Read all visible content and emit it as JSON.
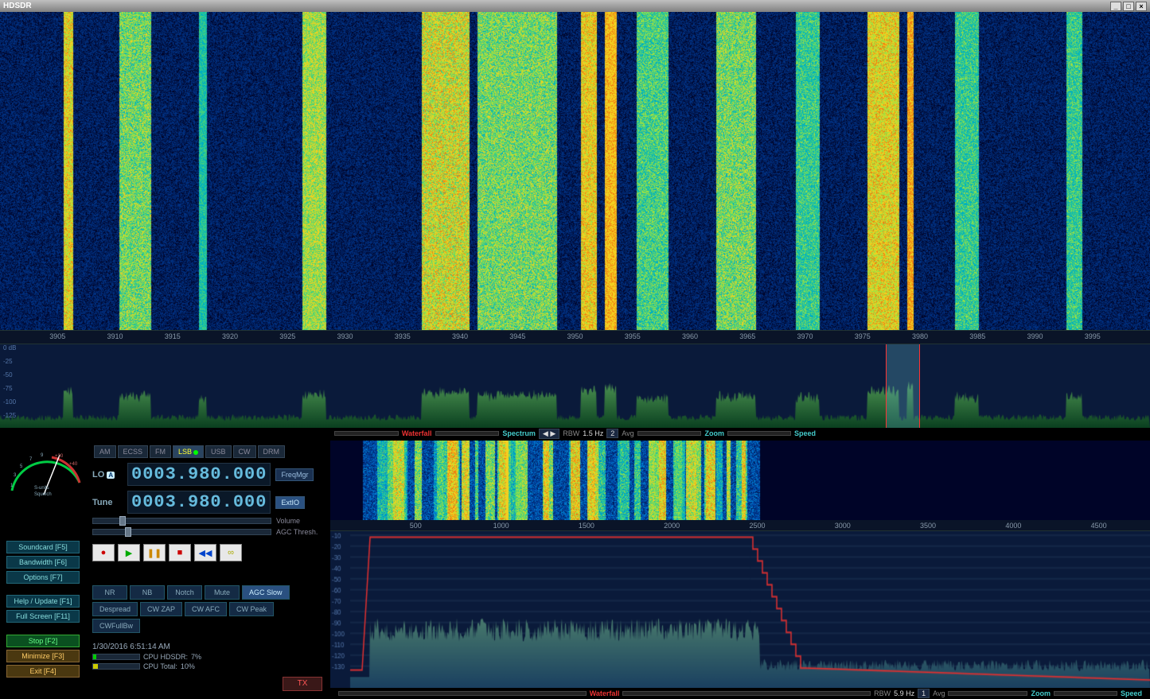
{
  "window": {
    "title": "HDSDR"
  },
  "main_waterfall": {
    "colors": [
      "#000428",
      "#001850",
      "#003080",
      "#0050b0",
      "#0080d0",
      "#00b0c0",
      "#40d080",
      "#a0e040",
      "#f0d020",
      "#f08010",
      "#e03000"
    ],
    "freq_start": 3900,
    "freq_end": 4000,
    "ticks": [
      3905,
      3910,
      3915,
      3920,
      3925,
      3930,
      3935,
      3940,
      3945,
      3950,
      3955,
      3960,
      3965,
      3970,
      3975,
      3980,
      3985,
      3990,
      3995
    ],
    "tune_marker_freq": 3980,
    "passband_low": 3977,
    "passband_high": 3980
  },
  "main_spectrum": {
    "db_ticks": [
      "0 dB",
      "-25",
      "-50",
      "-75",
      "-100",
      "-125"
    ],
    "floor_color": "#0a4020",
    "line_color": "#4a9050",
    "background": "#0a1a3a"
  },
  "upper_controls": {
    "waterfall_label": "Waterfall",
    "spectrum_label": "Spectrum",
    "rbw_label": "RBW",
    "rbw_value": "1.5 Hz",
    "avg_value": "2",
    "avg_label": "Avg",
    "zoom_label": "Zoom",
    "speed_label": "Speed"
  },
  "modes": {
    "items": [
      "AM",
      "ECSS",
      "FM",
      "LSB",
      "USB",
      "CW",
      "DRM"
    ],
    "active": "LSB"
  },
  "smeter": {
    "label": "S-units\nSquelch",
    "scale_left": [
      "1",
      "3",
      "5",
      "7",
      "9"
    ],
    "scale_right": [
      "+20",
      "+40"
    ]
  },
  "frequency": {
    "lo_label": "LO",
    "lo_badge": "A",
    "lo_value": "0003.980.000",
    "tune_label": "Tune",
    "tune_value": "0003.980.000",
    "freqmgr_label": "FreqMgr",
    "extio_label": "ExtIO"
  },
  "sliders": {
    "volume_label": "Volume",
    "agc_label": "AGC Thresh."
  },
  "transport": {
    "record": "●",
    "play": "▶",
    "pause": "❚❚",
    "stop": "■",
    "rewind": "◀◀",
    "loop": "∞"
  },
  "left_buttons": {
    "soundcard": "Soundcard  [F5]",
    "bandwidth": "Bandwidth  [F6]",
    "options": "Options     [F7]",
    "help": "Help / Update  [F1]",
    "fullscreen": "Full Screen  [F11]",
    "stop": "Stop       [F2]",
    "minimize": "Minimize   [F3]",
    "exit": "Exit       [F4]"
  },
  "dsp": {
    "row1": [
      "NR",
      "NB",
      "Notch"
    ],
    "row2": [
      "Mute",
      "AGC Slow",
      "Despread"
    ],
    "row3": [
      "CW ZAP",
      "CW AFC",
      "CW Peak",
      "CWFullBw"
    ],
    "active": "AGC Slow"
  },
  "status": {
    "datetime": "1/30/2016 6:51:14 AM",
    "cpu1_label": "CPU HDSDR:",
    "cpu1_val": "7%",
    "cpu2_label": "CPU Total:",
    "cpu2_val": "10%",
    "tx_label": "TX"
  },
  "audio_panel": {
    "waterfall_colors": [
      "#000428",
      "#001850",
      "#003080",
      "#0050b0",
      "#0080d0",
      "#00b0c0",
      "#40d080",
      "#a0e040",
      "#f0d020",
      "#f08010"
    ],
    "ruler_ticks": [
      500,
      1000,
      1500,
      2000,
      2500,
      3000,
      3500,
      4000,
      4500
    ],
    "ruler_max": 4800,
    "db_ticks": [
      "-10",
      "-20",
      "-30",
      "-40",
      "-50",
      "-60",
      "-70",
      "-80",
      "-90",
      "-100",
      "-110",
      "-120",
      "-130"
    ],
    "filter_line_color": "#e03030",
    "spectrum_fill": "#1a4060",
    "spectrum_line": "#5a9070",
    "tune_marker": 1280
  },
  "lower_controls": {
    "waterfall_label": "Waterfall",
    "rbw_label": "RBW",
    "rbw_value": "5.9 Hz",
    "avg_value": "1",
    "avg_label": "Avg",
    "zoom_label": "Zoom",
    "speed_label": "Speed"
  }
}
